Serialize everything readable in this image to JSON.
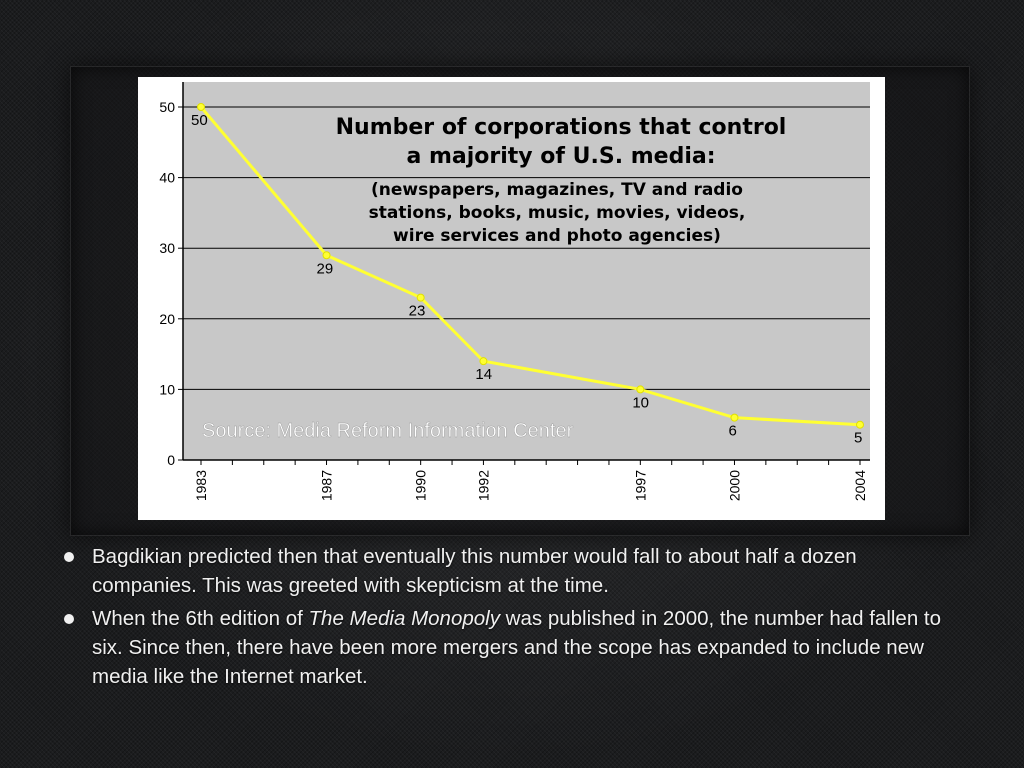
{
  "chart_data": {
    "type": "line",
    "title_lines": [
      "Number of corporations that control",
      "a majority of U.S. media:"
    ],
    "subtitle_lines": [
      "(newspapers, magazines, TV and radio",
      "stations, books, music, movies, videos,",
      "wire services and photo agencies)"
    ],
    "source": "Source: Media Reform Information Center",
    "x": [
      1983,
      1987,
      1990,
      1992,
      1997,
      2000,
      2004
    ],
    "x_tick_labels": [
      "1983",
      "1987",
      "1990",
      "1992",
      "1997",
      "2000",
      "2004"
    ],
    "xlim": [
      1983,
      2004
    ],
    "series": [
      {
        "values": [
          50,
          29,
          23,
          14,
          10,
          6,
          5
        ]
      }
    ],
    "data_labels": [
      "50",
      "29",
      "23",
      "14",
      "10",
      "6",
      "5"
    ],
    "ylim": [
      0,
      50
    ],
    "y_ticks": [
      "0",
      "10",
      "20",
      "30",
      "40",
      "50"
    ],
    "xlabel": "",
    "ylabel": "",
    "grid": true,
    "colors": {
      "line": "#ffff33",
      "plot_bg": "#c8c8c8",
      "card_bg": "#ffffff"
    }
  },
  "bullets": [
    {
      "segments": [
        {
          "text": "Bagdikian predicted then that eventually this number would fall to about half a dozen companies. This was greeted with skepticism at the time.",
          "italic": false
        }
      ]
    },
    {
      "segments": [
        {
          "text": "When the 6th edition of ",
          "italic": false
        },
        {
          "text": "The Media Monopoly",
          "italic": true
        },
        {
          "text": " was published in 2000, the number had fallen to six. Since then, there have been more mergers and the scope has expanded to include new media like the Internet market.",
          "italic": false
        }
      ]
    }
  ]
}
